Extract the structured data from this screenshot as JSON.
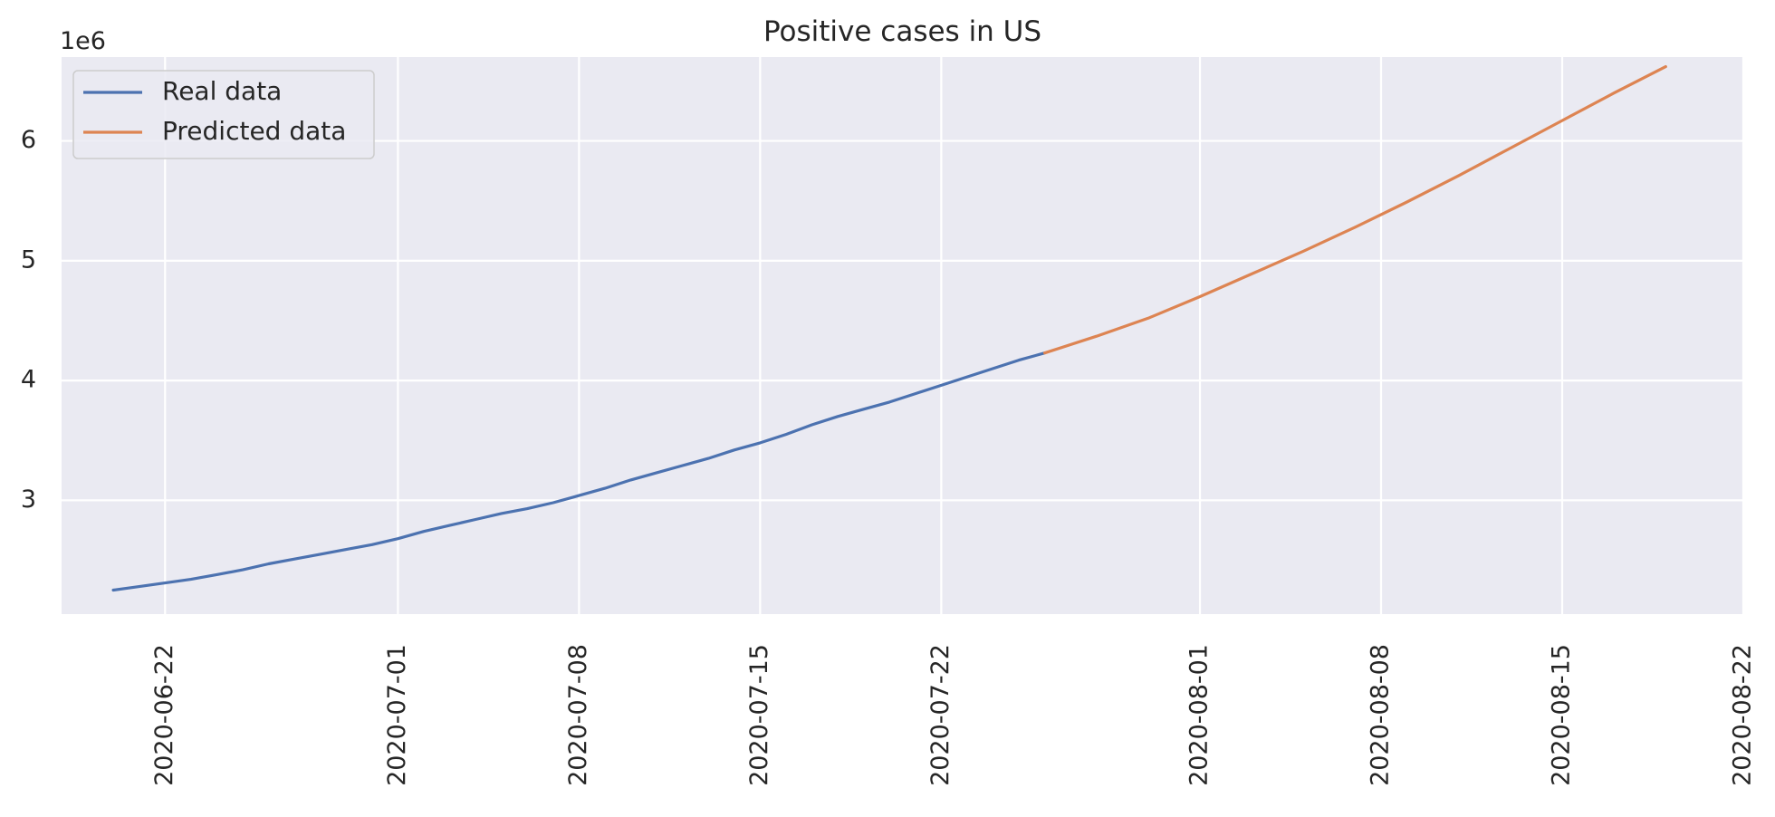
{
  "chart_data": {
    "type": "line",
    "title": "Positive cases in US",
    "xlabel": "",
    "ylabel": "",
    "y_offset_label": "1e6",
    "x_type": "date",
    "xlim": [
      "2020-06-18",
      "2020-08-22"
    ],
    "ylim": [
      2.05,
      6.7
    ],
    "grid": true,
    "legend_position": "upper-left",
    "x_ticks": [
      "2020-06-22",
      "2020-07-01",
      "2020-07-08",
      "2020-07-15",
      "2020-07-22",
      "2020-08-01",
      "2020-08-08",
      "2020-08-15",
      "2020-08-22"
    ],
    "y_ticks": [
      3,
      4,
      5,
      6
    ],
    "colors": {
      "real": "#4c72b0",
      "predicted": "#dd8452",
      "background": "#eaeaf2"
    },
    "series": [
      {
        "name": "Real data",
        "color": "#4c72b0",
        "points": [
          [
            "2020-06-20",
            2.25
          ],
          [
            "2020-06-21",
            2.28
          ],
          [
            "2020-06-22",
            2.31
          ],
          [
            "2020-06-23",
            2.34
          ],
          [
            "2020-06-24",
            2.38
          ],
          [
            "2020-06-25",
            2.42
          ],
          [
            "2020-06-26",
            2.47
          ],
          [
            "2020-06-27",
            2.51
          ],
          [
            "2020-06-28",
            2.55
          ],
          [
            "2020-06-29",
            2.59
          ],
          [
            "2020-06-30",
            2.63
          ],
          [
            "2020-07-01",
            2.68
          ],
          [
            "2020-07-02",
            2.74
          ],
          [
            "2020-07-03",
            2.79
          ],
          [
            "2020-07-04",
            2.84
          ],
          [
            "2020-07-05",
            2.89
          ],
          [
            "2020-07-06",
            2.93
          ],
          [
            "2020-07-07",
            2.98
          ],
          [
            "2020-07-08",
            3.04
          ],
          [
            "2020-07-09",
            3.1
          ],
          [
            "2020-07-10",
            3.17
          ],
          [
            "2020-07-11",
            3.23
          ],
          [
            "2020-07-12",
            3.29
          ],
          [
            "2020-07-13",
            3.35
          ],
          [
            "2020-07-14",
            3.42
          ],
          [
            "2020-07-15",
            3.48
          ],
          [
            "2020-07-16",
            3.55
          ],
          [
            "2020-07-17",
            3.63
          ],
          [
            "2020-07-18",
            3.7
          ],
          [
            "2020-07-19",
            3.76
          ],
          [
            "2020-07-20",
            3.82
          ],
          [
            "2020-07-21",
            3.89
          ],
          [
            "2020-07-22",
            3.96
          ],
          [
            "2020-07-23",
            4.03
          ],
          [
            "2020-07-24",
            4.1
          ],
          [
            "2020-07-25",
            4.17
          ],
          [
            "2020-07-26",
            4.23
          ]
        ]
      },
      {
        "name": "Predicted data",
        "color": "#dd8452",
        "points": [
          [
            "2020-07-26",
            4.23
          ],
          [
            "2020-07-28",
            4.37
          ],
          [
            "2020-07-30",
            4.52
          ],
          [
            "2020-08-01",
            4.7
          ],
          [
            "2020-08-03",
            4.89
          ],
          [
            "2020-08-05",
            5.08
          ],
          [
            "2020-08-07",
            5.28
          ],
          [
            "2020-08-09",
            5.49
          ],
          [
            "2020-08-11",
            5.71
          ],
          [
            "2020-08-13",
            5.94
          ],
          [
            "2020-08-15",
            6.17
          ],
          [
            "2020-08-17",
            6.4
          ],
          [
            "2020-08-19",
            6.62
          ]
        ]
      }
    ]
  }
}
